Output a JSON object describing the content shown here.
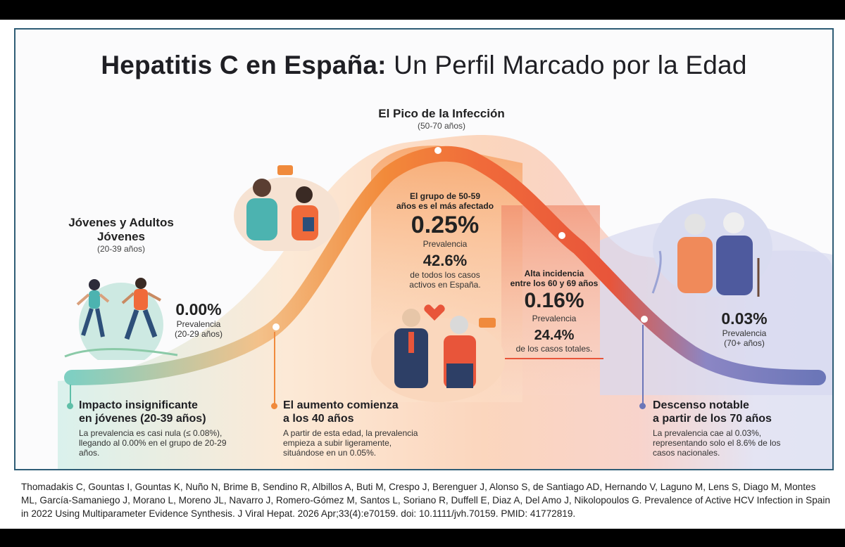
{
  "title": {
    "bold": "Hepatitis C en España:",
    "rest": " Un Perfil Marcado por la Edad"
  },
  "peak": {
    "title": "El Pico de la Infección",
    "range": "(50-70 años)"
  },
  "young": {
    "title_line1": "Jóvenes y Adultos",
    "title_line2": "Jóvenes",
    "range": "(20-39 años)",
    "stat": "0.00%",
    "stat_label": "Prevalencia",
    "stat_range": "(20-29 años)"
  },
  "middle": {
    "heading_line1": "El grupo de 50-59",
    "heading_line2": "años es el más afectado",
    "stat": "0.25%",
    "stat_label": "Prevalencia",
    "share": "42.6%",
    "share_line1": "de todos los casos",
    "share_line2": "activos en España."
  },
  "sixties": {
    "heading_line1": "Alta incidencia",
    "heading_line2": "entre los 60 y 69 años",
    "stat": "0.16%",
    "stat_label": "Prevalencia",
    "share": "24.4%",
    "share_label": "de los casos totales."
  },
  "elderly": {
    "stat": "0.03%",
    "stat_label": "Prevalencia",
    "stat_range": "(70+ años)"
  },
  "callouts": [
    {
      "title_line1": "Impacto insignificante",
      "title_line2": "en jóvenes (20-39 años)",
      "text_line1": "La prevalencia es casi nula (≤ 0.08%),",
      "text_line2": "llegando al 0.00% en el grupo de 20-29",
      "text_line3": "años.",
      "color": "#5fbfa8"
    },
    {
      "title_line1": "El aumento comienza",
      "title_line2": "a los 40 años",
      "text_line1": "A partir de esta edad, la prevalencia",
      "text_line2": "empieza a subir ligeramente,",
      "text_line3": "situándose en un 0.05%.",
      "color": "#f08a3c"
    },
    {
      "title_line1": "Descenso notable",
      "title_line2": "a partir de los 70 años",
      "text_line1": "La prevalencia cae al 0.03%,",
      "text_line2": "representando solo el 8.6% de los",
      "text_line3": "casos nacionales.",
      "color": "#6b76b8"
    }
  ],
  "citation": "Thomadakis C, Gountas I, Gountas K, Nuño N, Brime B, Sendino R, Albillos A, Buti M, Crespo J, Berenguer J, Alonso S, de Santiago AD, Hernando V, Laguno M, Lens S, Diago M, Montes ML, García-Samaniego J, Morano L, Moreno JL, Navarro J, Romero-Gómez M, Santos L, Soriano R, Duffell E, Diaz A, Del Amo J, Nikolopoulos G. Prevalence of Active HCV Infection in Spain in 2022 Using Multiparameter Evidence Synthesis. J Viral Hepat. 2026 Apr;33(4):e70159. doi: 10.1111/jvh.70159. PMID: 41772819.",
  "colors": {
    "frame": "#2f5d76",
    "teal": "#5fbfa8",
    "orange": "#f08a3c",
    "red": "#e8553a",
    "purple": "#6b76b8"
  },
  "illustrations": [
    "runners-illustration",
    "young-couple-illustration",
    "middle-aged-couple-illustration",
    "elderly-couple-illustration",
    "broken-heart-icon",
    "speech-bubble-icon"
  ]
}
